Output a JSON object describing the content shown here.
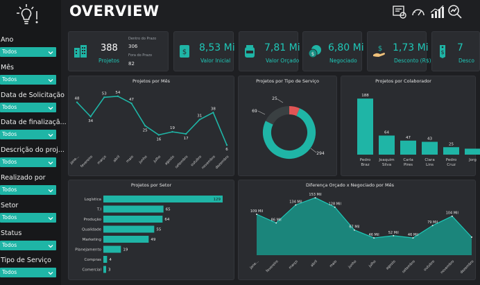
{
  "header": {
    "title": "OVERVIEW"
  },
  "filters": [
    {
      "label": "Ano",
      "value": "Todos"
    },
    {
      "label": "Mês",
      "value": "Todos"
    },
    {
      "label": "Data de Solicitação",
      "value": "Todos"
    },
    {
      "label": "Data de finalizaçã...",
      "value": "Todos"
    },
    {
      "label": "Descrição do proj...",
      "value": "Todos"
    },
    {
      "label": "Realizado por",
      "value": "Todos"
    },
    {
      "label": "Setor",
      "value": "Todos"
    },
    {
      "label": "Status",
      "value": "Todos"
    },
    {
      "label": "Tipo de Serviço",
      "value": "Todos"
    }
  ],
  "kpis": {
    "projetos": {
      "value": "388",
      "label": "Projetos",
      "dentro_label": "Dentro do Prazo",
      "dentro_value": "306",
      "fora_label": "Fora do Prazo",
      "fora_value": "82"
    },
    "cards": [
      {
        "value": "8,53 Mi",
        "label": "Valor Inicial",
        "icon": "money-document-icon"
      },
      {
        "value": "7,81 Mi",
        "label": "Valor Orçado",
        "icon": "money-jar-icon"
      },
      {
        "value": "6,80 Mi",
        "label": "Negociado",
        "icon": "coins-icon"
      },
      {
        "value": "1,73 Mi",
        "label": "Desconto (R$)",
        "icon": "hand-money-icon"
      },
      {
        "value": "7",
        "label": "Desco",
        "icon": "price-tag-icon"
      }
    ]
  },
  "colors": {
    "accent": "#1fb5a6",
    "red": "#e05555",
    "dark_slice": "#3a4042",
    "panel": "#2a2c30",
    "background": "#1e1f22"
  },
  "chart_data": [
    {
      "type": "line",
      "title": "Projetos por Mês",
      "categories": [
        "jane...",
        "fevereiro",
        "março",
        "abril",
        "maio",
        "junho",
        "julho",
        "agosto",
        "setembro",
        "outubro",
        "novembro",
        "dezembro"
      ],
      "values": [
        48,
        34,
        53,
        54,
        47,
        25,
        16,
        19,
        17,
        31,
        38,
        6
      ],
      "ylim": [
        0,
        60
      ]
    },
    {
      "type": "pie",
      "title": "Projetos por Tipo de Serviço",
      "labels": [
        "",
        "",
        ""
      ],
      "values": [
        294,
        69,
        25
      ],
      "colors": [
        "#1fb5a6",
        "#3a4042",
        "#e05555"
      ]
    },
    {
      "type": "bar",
      "title": "Projetos por Colaborador",
      "categories": [
        "Pedro Braz",
        "Joaquim Silva",
        "Carla Pires",
        "Clara Lins",
        "Pedro Cruz",
        "Jorg"
      ],
      "values": [
        188,
        64,
        47,
        43,
        25,
        20
      ],
      "value_labels": [
        "188",
        "64",
        "47",
        "43",
        "25",
        ""
      ],
      "ylim": [
        0,
        200
      ]
    },
    {
      "type": "bar",
      "orientation": "horizontal",
      "title": "Projetos por Setor",
      "categories": [
        "Logística",
        "T.I",
        "Produção",
        "Qualidade",
        "Marketing",
        "Planejamento",
        "Compras",
        "Comercial"
      ],
      "values": [
        129,
        65,
        64,
        55,
        49,
        19,
        4,
        3
      ],
      "xlim": [
        0,
        135
      ]
    },
    {
      "type": "area",
      "title": "Diferença Orçado x Negociado por Mês",
      "categories": [
        "jane...",
        "fevereiro",
        "março",
        "abril",
        "maio",
        "junho",
        "julho",
        "agosto",
        "setembro",
        "outubro",
        "novembro",
        "dezembro"
      ],
      "values": [
        109,
        86,
        134,
        153,
        128,
        67,
        46,
        52,
        46,
        79,
        104,
        48
      ],
      "value_labels": [
        "109 Mil",
        "86 Mil",
        "134 Mil",
        "153 Mil",
        "128 Mil",
        "67 Mil",
        "46 Mil",
        "52 Mil",
        "46 Mil",
        "79 Mil",
        "104 Mil",
        ""
      ],
      "ylim": [
        0,
        170
      ]
    }
  ]
}
